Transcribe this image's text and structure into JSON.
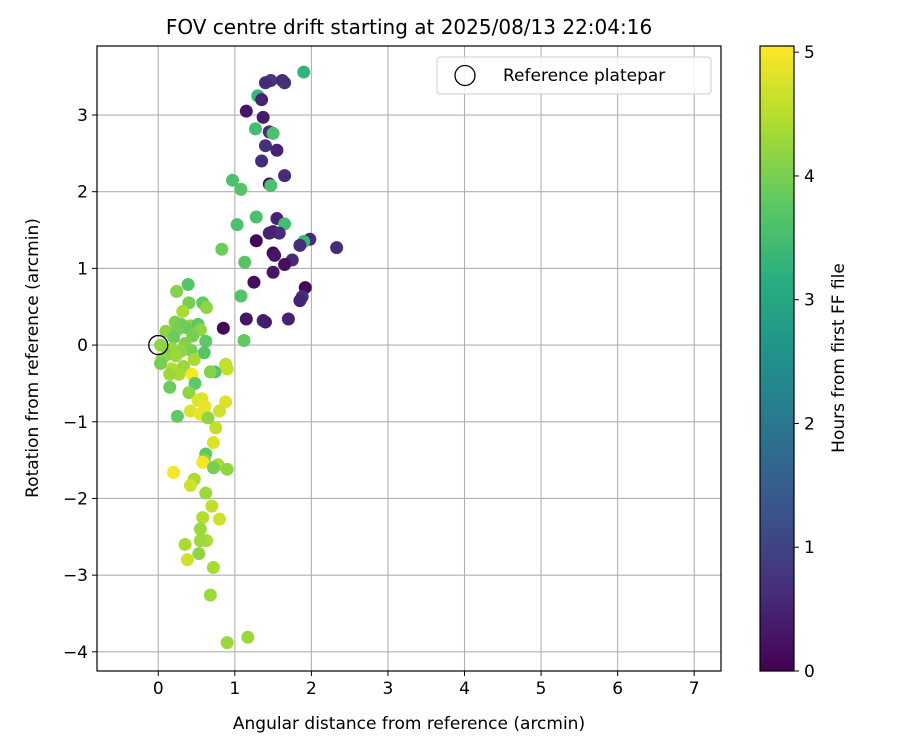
{
  "chart_data": {
    "type": "scatter",
    "title": "FOV centre drift starting at 2025/08/13 22:04:16",
    "xlabel": "Angular distance from reference (arcmin)",
    "ylabel": "Rotation from reference (arcmin)",
    "xlim": [
      -0.8,
      7.35
    ],
    "ylim": [
      -4.25,
      3.9
    ],
    "xticks": [
      "0",
      "1",
      "2",
      "3",
      "4",
      "5",
      "6",
      "7"
    ],
    "yticks": [
      "−4",
      "−3",
      "−2",
      "−1",
      "0",
      "1",
      "2",
      "3"
    ],
    "grid": true,
    "legend": {
      "label": "Reference platepar",
      "position": "top-right"
    },
    "reference_point": {
      "x": 0,
      "y": 0
    },
    "colorbar": {
      "label": "Hours from first FF file",
      "range": [
        0,
        5.05
      ],
      "ticks": [
        "0",
        "1",
        "2",
        "3",
        "4",
        "5"
      ],
      "colormap": "viridis"
    },
    "points": [
      {
        "x": 1.9,
        "y": 3.56,
        "h": 3.3
      },
      {
        "x": 1.47,
        "y": 3.45,
        "h": 0.8
      },
      {
        "x": 1.4,
        "y": 3.42,
        "h": 0.6
      },
      {
        "x": 1.62,
        "y": 3.45,
        "h": 0.6
      },
      {
        "x": 1.65,
        "y": 3.42,
        "h": 0.7
      },
      {
        "x": 1.3,
        "y": 3.25,
        "h": 3.4
      },
      {
        "x": 1.35,
        "y": 3.2,
        "h": 0.5
      },
      {
        "x": 1.15,
        "y": 3.05,
        "h": 0.3
      },
      {
        "x": 1.37,
        "y": 2.97,
        "h": 0.4
      },
      {
        "x": 1.27,
        "y": 2.82,
        "h": 3.5
      },
      {
        "x": 1.45,
        "y": 2.78,
        "h": 0.6
      },
      {
        "x": 1.5,
        "y": 2.76,
        "h": 3.6
      },
      {
        "x": 1.4,
        "y": 2.6,
        "h": 0.7
      },
      {
        "x": 1.55,
        "y": 2.54,
        "h": 0.5
      },
      {
        "x": 1.35,
        "y": 2.4,
        "h": 0.6
      },
      {
        "x": 1.65,
        "y": 2.21,
        "h": 0.6
      },
      {
        "x": 0.97,
        "y": 2.15,
        "h": 3.6
      },
      {
        "x": 1.45,
        "y": 2.1,
        "h": 0.2
      },
      {
        "x": 1.47,
        "y": 2.08,
        "h": 3.6
      },
      {
        "x": 1.08,
        "y": 2.03,
        "h": 3.7
      },
      {
        "x": 1.28,
        "y": 1.67,
        "h": 3.6
      },
      {
        "x": 1.55,
        "y": 1.65,
        "h": 0.5
      },
      {
        "x": 1.65,
        "y": 1.58,
        "h": 3.5
      },
      {
        "x": 1.03,
        "y": 1.57,
        "h": 3.6
      },
      {
        "x": 1.5,
        "y": 1.48,
        "h": 0.4
      },
      {
        "x": 1.58,
        "y": 1.46,
        "h": 0.6
      },
      {
        "x": 1.45,
        "y": 1.46,
        "h": 0.5
      },
      {
        "x": 1.28,
        "y": 1.36,
        "h": 0.1
      },
      {
        "x": 1.98,
        "y": 1.38,
        "h": 0.6
      },
      {
        "x": 1.9,
        "y": 1.35,
        "h": 3.4
      },
      {
        "x": 1.85,
        "y": 1.3,
        "h": 0.7
      },
      {
        "x": 2.33,
        "y": 1.27,
        "h": 0.6
      },
      {
        "x": 0.83,
        "y": 1.25,
        "h": 3.9
      },
      {
        "x": 1.5,
        "y": 1.2,
        "h": 0.1
      },
      {
        "x": 1.52,
        "y": 1.17,
        "h": 0.3
      },
      {
        "x": 1.75,
        "y": 1.11,
        "h": 0.6
      },
      {
        "x": 1.13,
        "y": 1.08,
        "h": 3.7
      },
      {
        "x": 1.65,
        "y": 1.05,
        "h": 0.2
      },
      {
        "x": 1.5,
        "y": 0.95,
        "h": 0.3
      },
      {
        "x": 1.25,
        "y": 0.82,
        "h": 0.2
      },
      {
        "x": 0.39,
        "y": 0.79,
        "h": 3.7
      },
      {
        "x": 1.92,
        "y": 0.75,
        "h": 0.1
      },
      {
        "x": 0.24,
        "y": 0.7,
        "h": 4.1
      },
      {
        "x": 1.88,
        "y": 0.63,
        "h": 0.7
      },
      {
        "x": 1.85,
        "y": 0.58,
        "h": 0.5
      },
      {
        "x": 1.08,
        "y": 0.64,
        "h": 3.7
      },
      {
        "x": 0.4,
        "y": 0.55,
        "h": 4.0
      },
      {
        "x": 0.58,
        "y": 0.55,
        "h": 3.8
      },
      {
        "x": 0.63,
        "y": 0.49,
        "h": 4.2
      },
      {
        "x": 0.32,
        "y": 0.44,
        "h": 4.4
      },
      {
        "x": 1.15,
        "y": 0.34,
        "h": 0.3
      },
      {
        "x": 1.7,
        "y": 0.34,
        "h": 0.5
      },
      {
        "x": 1.37,
        "y": 0.32,
        "h": 0.5
      },
      {
        "x": 1.4,
        "y": 0.3,
        "h": 0.4
      },
      {
        "x": 0.22,
        "y": 0.3,
        "h": 4.1
      },
      {
        "x": 0.3,
        "y": 0.27,
        "h": 4.0
      },
      {
        "x": 0.42,
        "y": 0.25,
        "h": 4.2
      },
      {
        "x": 0.52,
        "y": 0.27,
        "h": 3.8
      },
      {
        "x": 0.35,
        "y": 0.23,
        "h": 3.9
      },
      {
        "x": 0.25,
        "y": 0.2,
        "h": 4.0
      },
      {
        "x": 0.85,
        "y": 0.22,
        "h": 0.1
      },
      {
        "x": 0.1,
        "y": 0.18,
        "h": 4.2
      },
      {
        "x": 0.55,
        "y": 0.2,
        "h": 4.2
      },
      {
        "x": 0.45,
        "y": 0.12,
        "h": 4.0
      },
      {
        "x": 0.2,
        "y": 0.1,
        "h": 3.9
      },
      {
        "x": 0.03,
        "y": 0.0,
        "h": 4.2
      },
      {
        "x": 0.62,
        "y": 0.05,
        "h": 3.8
      },
      {
        "x": 1.12,
        "y": 0.06,
        "h": 3.8
      },
      {
        "x": 0.35,
        "y": 0.02,
        "h": 4.1
      },
      {
        "x": 0.18,
        "y": -0.05,
        "h": 4.3
      },
      {
        "x": 0.43,
        "y": -0.07,
        "h": 4.0
      },
      {
        "x": 0.6,
        "y": -0.1,
        "h": 3.7
      },
      {
        "x": 0.3,
        "y": -0.08,
        "h": 4.2
      },
      {
        "x": 0.12,
        "y": -0.12,
        "h": 4.1
      },
      {
        "x": 0.23,
        "y": -0.14,
        "h": 4.3
      },
      {
        "x": 0.05,
        "y": -0.18,
        "h": 4.2
      },
      {
        "x": 0.47,
        "y": -0.19,
        "h": 4.4
      },
      {
        "x": 0.03,
        "y": -0.24,
        "h": 4.0
      },
      {
        "x": 0.88,
        "y": -0.25,
        "h": 4.6
      },
      {
        "x": 0.33,
        "y": -0.28,
        "h": 4.3
      },
      {
        "x": 0.18,
        "y": -0.31,
        "h": 4.5
      },
      {
        "x": 0.9,
        "y": -0.31,
        "h": 4.6
      },
      {
        "x": 0.74,
        "y": -0.35,
        "h": 3.7
      },
      {
        "x": 0.68,
        "y": -0.35,
        "h": 4.1
      },
      {
        "x": 0.27,
        "y": -0.38,
        "h": 4.4
      },
      {
        "x": 0.15,
        "y": -0.38,
        "h": 4.3
      },
      {
        "x": 0.44,
        "y": -0.38,
        "h": 5.0
      },
      {
        "x": 0.48,
        "y": -0.5,
        "h": 3.8
      },
      {
        "x": 0.15,
        "y": -0.55,
        "h": 3.9
      },
      {
        "x": 0.4,
        "y": -0.62,
        "h": 4.2
      },
      {
        "x": 0.57,
        "y": -0.7,
        "h": 4.8
      },
      {
        "x": 0.52,
        "y": -0.72,
        "h": 4.8
      },
      {
        "x": 0.88,
        "y": -0.74,
        "h": 4.8
      },
      {
        "x": 0.61,
        "y": -0.8,
        "h": 4.9
      },
      {
        "x": 0.42,
        "y": -0.86,
        "h": 4.8
      },
      {
        "x": 0.8,
        "y": -0.86,
        "h": 4.7
      },
      {
        "x": 0.55,
        "y": -0.9,
        "h": 4.9
      },
      {
        "x": 0.25,
        "y": -0.93,
        "h": 3.8
      },
      {
        "x": 0.65,
        "y": -0.95,
        "h": 4.2
      },
      {
        "x": 0.75,
        "y": -1.08,
        "h": 4.6
      },
      {
        "x": 0.72,
        "y": -1.27,
        "h": 4.8
      },
      {
        "x": 0.62,
        "y": -1.42,
        "h": 3.8
      },
      {
        "x": 0.6,
        "y": -1.5,
        "h": 4.2
      },
      {
        "x": 0.58,
        "y": -1.53,
        "h": 5.0
      },
      {
        "x": 0.78,
        "y": -1.56,
        "h": 4.4
      },
      {
        "x": 0.72,
        "y": -1.6,
        "h": 4.0
      },
      {
        "x": 0.9,
        "y": -1.62,
        "h": 4.2
      },
      {
        "x": 0.2,
        "y": -1.66,
        "h": 5.0
      },
      {
        "x": 0.47,
        "y": -1.75,
        "h": 4.4
      },
      {
        "x": 0.42,
        "y": -1.83,
        "h": 4.7
      },
      {
        "x": 0.62,
        "y": -1.93,
        "h": 4.3
      },
      {
        "x": 0.7,
        "y": -2.1,
        "h": 4.6
      },
      {
        "x": 0.58,
        "y": -2.25,
        "h": 4.5
      },
      {
        "x": 0.8,
        "y": -2.27,
        "h": 4.7
      },
      {
        "x": 0.55,
        "y": -2.4,
        "h": 4.3
      },
      {
        "x": 0.63,
        "y": -2.55,
        "h": 4.4
      },
      {
        "x": 0.55,
        "y": -2.55,
        "h": 4.3
      },
      {
        "x": 0.35,
        "y": -2.6,
        "h": 4.4
      },
      {
        "x": 0.53,
        "y": -2.72,
        "h": 4.2
      },
      {
        "x": 0.38,
        "y": -2.8,
        "h": 4.7
      },
      {
        "x": 0.72,
        "y": -2.9,
        "h": 4.4
      },
      {
        "x": 0.68,
        "y": -3.26,
        "h": 4.3
      },
      {
        "x": 1.17,
        "y": -3.81,
        "h": 4.3
      },
      {
        "x": 0.9,
        "y": -3.88,
        "h": 4.3
      }
    ]
  }
}
